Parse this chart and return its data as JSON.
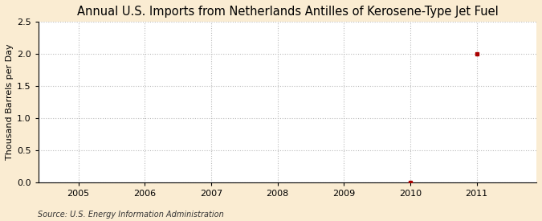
{
  "title": "Annual U.S. Imports from Netherlands Antilles of Kerosene-Type Jet Fuel",
  "ylabel": "Thousand Barrels per Day",
  "source": "Source: U.S. Energy Information Administration",
  "background_color": "#faecd2",
  "plot_bg_color": "#ffffff",
  "point_2010_x": 2010,
  "point_2010_y": 0.0,
  "point_2011_x": 2011,
  "point_2011_y": 2.0,
  "point_color": "#aa0000",
  "xlim": [
    2004.4,
    2011.9
  ],
  "ylim": [
    0,
    2.5
  ],
  "yticks": [
    0.0,
    0.5,
    1.0,
    1.5,
    2.0,
    2.5
  ],
  "xticks": [
    2005,
    2006,
    2007,
    2008,
    2009,
    2010,
    2011
  ],
  "grid_color": "#bbbbbb",
  "grid_style": ":",
  "title_fontsize": 10.5,
  "label_fontsize": 8,
  "tick_fontsize": 8,
  "source_fontsize": 7
}
